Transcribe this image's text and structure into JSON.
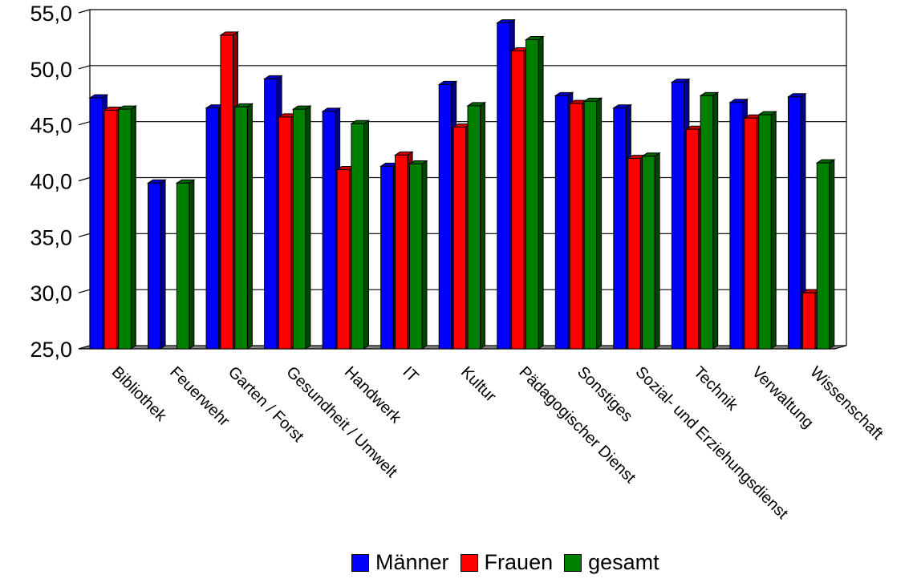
{
  "chart_data": {
    "type": "bar",
    "title": "",
    "xlabel": "",
    "ylabel": "",
    "ylim": [
      25,
      55
    ],
    "yticks": [
      "25,0",
      "30,0",
      "35,0",
      "40,0",
      "45,0",
      "50,0",
      "55,0"
    ],
    "ytick_values": [
      25,
      30,
      35,
      40,
      45,
      50,
      55
    ],
    "grid": "horizontal",
    "legend_position": "bottom",
    "categories": [
      "Bibliothek",
      "Feuerwehr",
      "Garten / Forst",
      "Gesundheit / Umwelt",
      "Handwerk",
      "IT",
      "Kultur",
      "Pädagogischer Dienst",
      "Sonstiges",
      "Sozial- und Erziehungsdienst",
      "Technik",
      "Verwaltung",
      "Wissenschaft"
    ],
    "series": [
      {
        "name": "Männer",
        "color": "#0000ff",
        "values": [
          47.4,
          39.8,
          46.5,
          49.1,
          46.2,
          41.3,
          48.6,
          54.1,
          47.6,
          46.5,
          48.8,
          47.0,
          47.5
        ]
      },
      {
        "name": "Frauen",
        "color": "#ff0000",
        "values": [
          46.3,
          null,
          53.0,
          45.7,
          41.0,
          42.3,
          44.8,
          51.6,
          46.9,
          42.0,
          44.6,
          45.6,
          30.0
        ]
      },
      {
        "name": "gesamt",
        "color": "#008000",
        "values": [
          46.4,
          39.8,
          46.6,
          46.4,
          45.1,
          41.5,
          46.7,
          52.6,
          47.1,
          42.2,
          47.6,
          45.9,
          41.6
        ]
      }
    ]
  }
}
